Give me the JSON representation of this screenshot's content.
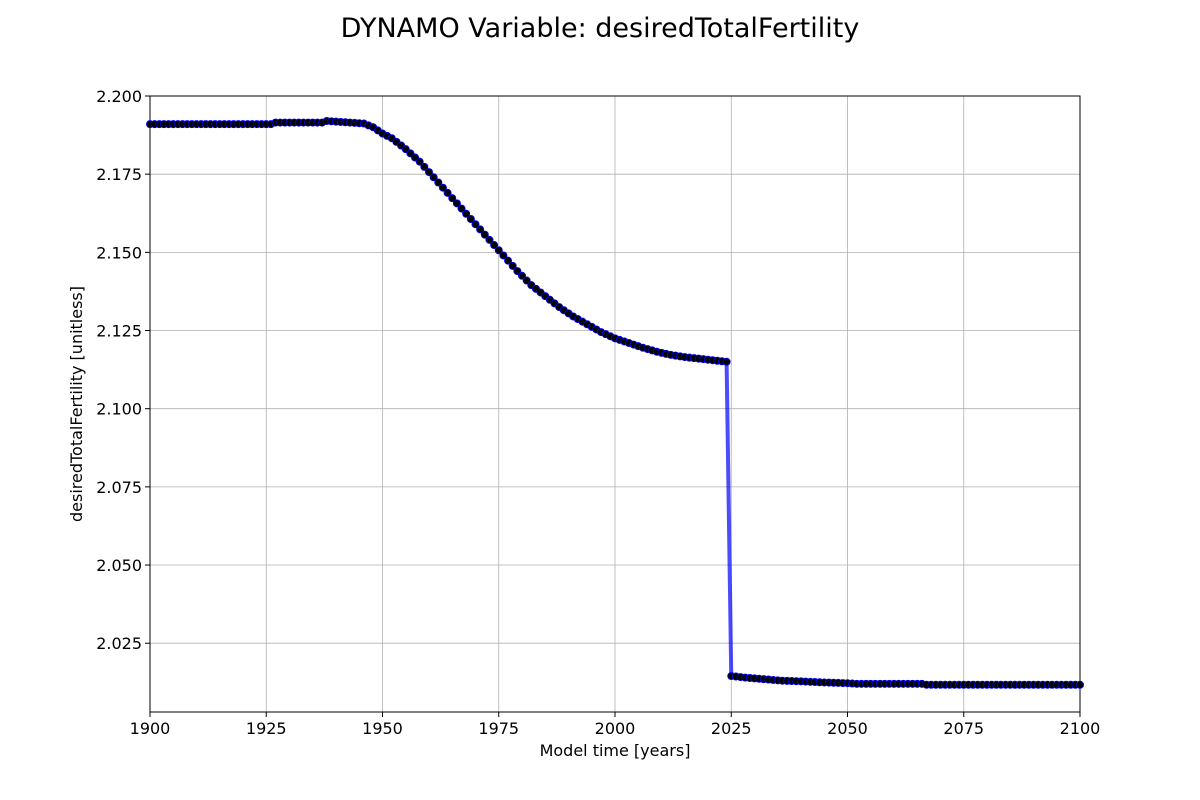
{
  "chart_data": {
    "type": "line",
    "title": "DYNAMO Variable: desiredTotalFertility",
    "xlabel": "Model time [years]",
    "ylabel": "desiredTotalFertility [unitless]",
    "xlim": [
      1900,
      2100
    ],
    "ylim": [
      2.003,
      2.2
    ],
    "xticks": [
      1900,
      1925,
      1950,
      1975,
      2000,
      2025,
      2050,
      2075,
      2100
    ],
    "yticks": [
      2.025,
      2.05,
      2.075,
      2.1,
      2.125,
      2.15,
      2.175,
      2.2
    ],
    "ytick_labels": [
      "2.025",
      "2.050",
      "2.075",
      "2.100",
      "2.125",
      "2.150",
      "2.175",
      "2.200"
    ],
    "grid": true,
    "line_color": "#0000ff",
    "marker_color": "#000000",
    "series": [
      {
        "x": [
          1900,
          1926,
          1927,
          1937,
          1938,
          1946,
          1948,
          1950,
          1952,
          1955,
          1958,
          1961,
          1964,
          1967,
          1970,
          1973,
          1976,
          1979,
          1982,
          1985,
          1988,
          1991,
          1994,
          1997,
          2000,
          2003,
          2006,
          2009,
          2012,
          2015,
          2018,
          2021,
          2024,
          2025,
          2028,
          2032,
          2036,
          2040,
          2044,
          2050,
          2052,
          2060,
          2066,
          2067,
          2080,
          2090,
          2100
        ],
        "y": [
          2.191,
          2.191,
          2.1915,
          2.1915,
          2.192,
          2.1912,
          2.19,
          2.188,
          2.1865,
          2.183,
          2.179,
          2.174,
          2.169,
          2.164,
          2.159,
          2.154,
          2.149,
          2.144,
          2.1395,
          2.136,
          2.1325,
          2.1295,
          2.127,
          2.1245,
          2.1225,
          2.121,
          2.1195,
          2.1182,
          2.1172,
          2.1165,
          2.116,
          2.1155,
          2.115,
          2.0145,
          2.014,
          2.0135,
          2.013,
          2.0128,
          2.0125,
          2.0122,
          2.012,
          2.012,
          2.012,
          2.0117,
          2.0117,
          2.0117,
          2.0117
        ]
      }
    ]
  }
}
